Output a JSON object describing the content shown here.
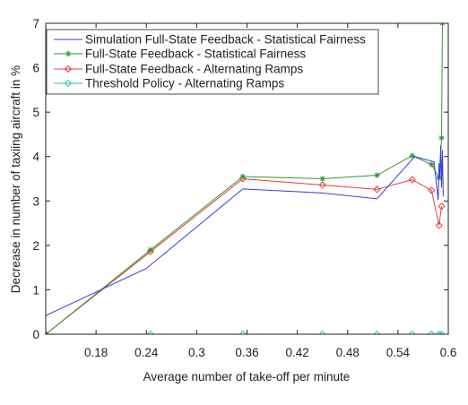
{
  "chart_data": {
    "type": "line",
    "xlabel": "Average number of take-off per minute",
    "ylabel": "Decrease in number of taxiing aircraft in %",
    "xlim": [
      0.12,
      0.6
    ],
    "ylim": [
      0,
      7
    ],
    "x_ticks": [
      "0.18",
      "0.24",
      "0.3",
      "0.36",
      "0.42",
      "0.48",
      "0.54",
      "0.6"
    ],
    "x_tick_values": [
      0.18,
      0.24,
      0.3,
      0.36,
      0.42,
      0.48,
      0.54,
      0.6
    ],
    "y_ticks": [
      "0",
      "1",
      "2",
      "3",
      "4",
      "5",
      "6",
      "7"
    ],
    "y_tick_values": [
      0,
      1,
      2,
      3,
      4,
      5,
      6,
      7
    ],
    "grid": false,
    "legend_position": "top-left",
    "series": [
      {
        "name": "Simulation Full-State Feedback - Statistical Fairness",
        "color": "#3b3bdc",
        "marker": "none",
        "x": [
          0.12,
          0.12,
          0.12,
          0.18,
          0.24,
          0.355,
          0.45,
          0.515,
          0.56,
          0.583,
          0.588,
          0.589,
          0.59,
          0.591,
          0.592,
          0.593,
          0.594
        ],
        "y": [
          0.55,
          0.3,
          0.42,
          0.95,
          1.48,
          3.27,
          3.18,
          3.05,
          4.0,
          3.88,
          3.02,
          3.85,
          3.52,
          4.25,
          3.3,
          4.15,
          3.1
        ]
      },
      {
        "name": "Full-State Feedback - Statistical Fairness",
        "color": "#2f9a2f",
        "marker": "star",
        "x": [
          0.12,
          0.245,
          0.355,
          0.45,
          0.515,
          0.557,
          0.58,
          0.589,
          0.592,
          0.593
        ],
        "y": [
          0.0,
          1.9,
          3.55,
          3.5,
          3.58,
          4.02,
          3.82,
          3.52,
          4.42,
          7.0
        ]
      },
      {
        "name": "Full-State Feedback - Alternating Ramps",
        "color": "#e83b3b",
        "marker": "diamond",
        "x": [
          0.12,
          0.245,
          0.355,
          0.45,
          0.515,
          0.557,
          0.58,
          0.589,
          0.592
        ],
        "y": [
          0.0,
          1.86,
          3.5,
          3.36,
          3.26,
          3.48,
          3.24,
          2.45,
          2.88
        ]
      },
      {
        "name": "Threshold Policy - Alternating Ramps",
        "color": "#22c7c7",
        "marker": "diamond",
        "x": [
          0.12,
          0.245,
          0.355,
          0.45,
          0.515,
          0.557,
          0.58,
          0.589,
          0.592
        ],
        "y": [
          0.0,
          0.0,
          0.0,
          0.0,
          0.0,
          0.0,
          0.0,
          0.0,
          0.0
        ]
      }
    ]
  }
}
